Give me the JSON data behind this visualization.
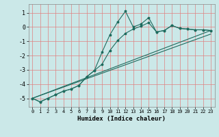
{
  "xlabel": "Humidex (Indice chaleur)",
  "background_color": "#cbe8e8",
  "grid_color": "#e08080",
  "line_color": "#1e6b5e",
  "xlim": [
    -0.5,
    23.5
  ],
  "ylim": [
    -5.6,
    1.6
  ],
  "yticks": [
    1,
    0,
    -1,
    -2,
    -3,
    -4,
    -5
  ],
  "xticks": [
    0,
    1,
    2,
    3,
    4,
    5,
    6,
    7,
    8,
    9,
    10,
    11,
    12,
    13,
    14,
    15,
    16,
    17,
    18,
    19,
    20,
    21,
    22,
    23
  ],
  "line1_x": [
    0,
    1,
    2,
    3,
    4,
    5,
    6,
    7,
    8,
    9,
    10,
    11,
    12,
    13,
    14,
    15,
    16,
    17,
    18,
    19,
    20,
    21,
    22,
    23
  ],
  "line1_y": [
    -5.0,
    -5.25,
    -5.0,
    -4.75,
    -4.5,
    -4.35,
    -4.1,
    -3.5,
    -3.05,
    -1.75,
    -0.55,
    0.35,
    1.1,
    -0.0,
    0.2,
    0.65,
    -0.35,
    -0.25,
    0.1,
    -0.1,
    -0.15,
    -0.2,
    -0.2,
    -0.25
  ],
  "line2_x": [
    0,
    1,
    2,
    3,
    4,
    5,
    6,
    7,
    8,
    9,
    10,
    11,
    12,
    13,
    14,
    15,
    16,
    17,
    18,
    19,
    20,
    21,
    22,
    23
  ],
  "line2_y": [
    -5.0,
    -5.25,
    -5.0,
    -4.75,
    -4.5,
    -4.35,
    -4.1,
    -3.5,
    -3.05,
    -2.6,
    -1.65,
    -0.95,
    -0.45,
    -0.15,
    0.05,
    0.3,
    -0.35,
    -0.25,
    0.1,
    -0.1,
    -0.15,
    -0.2,
    -0.2,
    -0.25
  ],
  "line3_y_end": -0.25,
  "line4_y_end": -0.5
}
